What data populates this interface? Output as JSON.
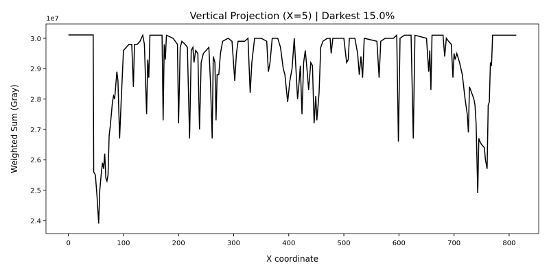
{
  "chart_data": {
    "type": "line",
    "title": "Vertical Projection (X=5) | Darkest 15.0%",
    "x_label": "X coordinate",
    "y_label": "Weighted Sum (Gray)",
    "y_offset_text": "1e7",
    "xlim": [
      -40.65,
      853.65
    ],
    "ylim": [
      2.357,
      3.047
    ],
    "xticks": [
      0,
      100,
      200,
      300,
      400,
      500,
      600,
      700,
      800
    ],
    "yticks": [
      2.4,
      2.5,
      2.6,
      2.7,
      2.8,
      2.9,
      {
        "value": 3,
        "label": "3.0"
      }
    ],
    "grid": false,
    "series": [
      {
        "color": "#000000",
        "x": [
          0,
          45,
          46,
          49,
          52,
          55,
          57,
          60,
          62,
          64,
          66,
          68,
          70,
          72,
          74,
          76,
          80,
          82,
          84,
          88,
          90,
          93,
          96,
          100,
          105,
          110,
          115,
          118,
          120,
          125,
          130,
          135,
          138,
          142,
          144,
          146,
          148,
          155,
          170,
          172,
          174,
          176,
          178,
          190,
          198,
          200,
          203,
          206,
          212,
          216,
          220,
          223,
          226,
          228,
          231,
          235,
          238,
          241,
          245,
          250,
          255,
          258,
          261,
          263,
          266,
          268,
          270,
          273,
          276,
          280,
          290,
          297,
          302,
          305,
          308,
          320,
          326,
          330,
          333,
          338,
          350,
          360,
          363,
          366,
          370,
          380,
          385,
          390,
          393,
          398,
          402,
          406,
          410,
          413,
          416,
          419,
          421,
          424,
          427,
          430,
          434,
          436,
          440,
          443,
          446,
          449,
          451,
          455,
          458,
          462,
          470,
          475,
          477,
          480,
          490,
          500,
          505,
          508,
          510,
          520,
          525,
          528,
          531,
          534,
          537,
          560,
          564,
          567,
          575,
          590,
          596,
          599,
          602,
          610,
          622,
          626,
          629,
          650,
          654,
          656,
          658,
          660,
          680,
          683,
          686,
          690,
          695,
          698,
          700,
          702,
          705,
          710,
          715,
          720,
          724,
          726,
          728,
          732,
          736,
          738,
          740,
          743,
          745,
          747,
          750,
          755,
          757,
          760,
          762,
          764,
          766,
          768,
          770,
          790,
          813
        ],
        "values": [
          3.011,
          3.011,
          2.56,
          2.55,
          2.48,
          2.39,
          2.5,
          2.56,
          2.59,
          2.57,
          2.62,
          2.54,
          2.53,
          2.55,
          2.68,
          2.71,
          2.79,
          2.81,
          2.8,
          2.89,
          2.86,
          2.67,
          2.8,
          2.96,
          2.97,
          2.98,
          2.98,
          2.84,
          2.98,
          2.98,
          2.99,
          3.01,
          2.98,
          2.75,
          2.93,
          2.87,
          3.01,
          3.01,
          3.01,
          2.73,
          2.98,
          2.93,
          3.01,
          3.0,
          2.98,
          2.72,
          2.97,
          2.99,
          2.98,
          2.97,
          2.67,
          2.96,
          2.97,
          2.92,
          2.96,
          2.95,
          2.7,
          2.92,
          2.95,
          2.96,
          2.97,
          2.85,
          2.67,
          2.94,
          2.92,
          2.73,
          2.88,
          2.88,
          2.95,
          2.99,
          3.0,
          2.99,
          2.86,
          2.95,
          2.99,
          2.99,
          3.0,
          2.82,
          2.92,
          3.0,
          3.0,
          2.99,
          2.89,
          2.92,
          3.0,
          3.0,
          2.97,
          2.9,
          2.88,
          2.79,
          2.86,
          2.9,
          3.0,
          2.9,
          2.8,
          2.86,
          2.91,
          2.75,
          2.92,
          2.96,
          2.88,
          2.83,
          2.92,
          2.91,
          2.72,
          2.81,
          2.73,
          2.82,
          2.97,
          2.99,
          3.0,
          3.0,
          2.95,
          3.0,
          3.0,
          3.0,
          2.92,
          2.93,
          3.0,
          3.0,
          2.95,
          2.88,
          2.94,
          2.87,
          3.0,
          2.99,
          2.87,
          2.99,
          3.0,
          3.0,
          3.01,
          2.66,
          3.0,
          3.01,
          3.01,
          2.67,
          3.01,
          3.0,
          2.89,
          2.96,
          2.83,
          3.01,
          3.01,
          2.94,
          3.0,
          2.99,
          2.98,
          2.87,
          2.95,
          2.93,
          2.95,
          2.92,
          2.88,
          2.8,
          2.75,
          2.69,
          2.84,
          2.82,
          2.8,
          2.78,
          2.72,
          2.49,
          2.67,
          2.66,
          2.65,
          2.64,
          2.6,
          2.57,
          2.78,
          2.79,
          2.92,
          2.91,
          3.01,
          3.01,
          3.01
        ]
      }
    ]
  }
}
